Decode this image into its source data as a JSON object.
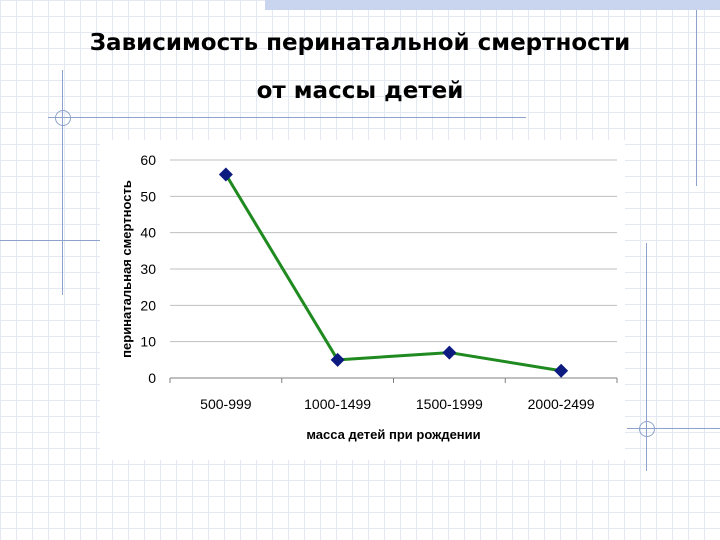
{
  "slide": {
    "title_line1": "Зависимость перинатальной смертности",
    "title_line2": "от массы детей"
  },
  "colors": {
    "line": "#1f8a1f",
    "marker": "#0d1a80",
    "grid": "#bfbfbf",
    "axis": "#808080"
  },
  "chart_data": {
    "type": "line",
    "categories": [
      "500-999",
      "1000-1499",
      "1500-1999",
      "2000-2499"
    ],
    "series": [
      {
        "values": [
          56,
          5,
          7,
          2
        ]
      }
    ],
    "xlabel": "масса детей при рождении",
    "ylabel": "перинатальная смертность",
    "ylim": [
      0,
      60
    ],
    "yticks": [
      0,
      10,
      20,
      30,
      40,
      50,
      60
    ],
    "grid": true,
    "legend": "none",
    "marker": "diamond"
  }
}
